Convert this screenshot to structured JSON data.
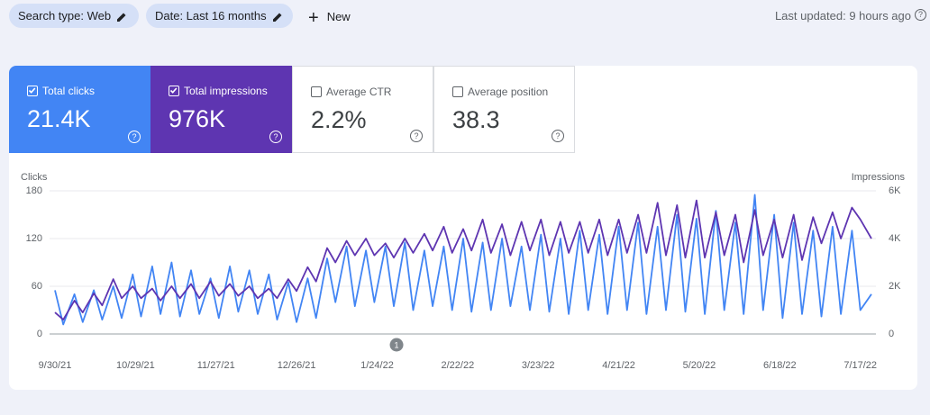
{
  "filters": [
    {
      "label": "Search type: Web"
    },
    {
      "label": "Date: Last 16 months"
    }
  ],
  "new_button": "New",
  "last_updated": "Last updated: 9 hours ago",
  "metrics": [
    {
      "label": "Total clicks",
      "value": "21.4K",
      "selected": true,
      "color": "#4285f4"
    },
    {
      "label": "Total impressions",
      "value": "976K",
      "selected": true,
      "color": "#5e35b1"
    },
    {
      "label": "Average CTR",
      "value": "2.2%",
      "selected": false,
      "color": "#00897b"
    },
    {
      "label": "Average position",
      "value": "38.3",
      "selected": false,
      "color": "#e8710a"
    }
  ],
  "chart_data": {
    "type": "line",
    "y_label": "Clicks",
    "y2_label": "Impressions",
    "x": [
      "9/30/21",
      "10/3/21",
      "10/7/21",
      "10/10/21",
      "10/14/21",
      "10/17/21",
      "10/21/21",
      "10/24/21",
      "10/28/21",
      "10/31/21",
      "11/4/21",
      "11/7/21",
      "11/11/21",
      "11/14/21",
      "11/18/21",
      "11/21/21",
      "11/25/21",
      "11/28/21",
      "12/2/21",
      "12/5/21",
      "12/9/21",
      "12/12/21",
      "12/16/21",
      "12/19/21",
      "12/23/21",
      "12/26/21",
      "12/30/21",
      "1/2/22",
      "1/6/22",
      "1/9/22",
      "1/13/22",
      "1/16/22",
      "1/20/22",
      "1/23/22",
      "1/27/22",
      "1/30/22",
      "2/3/22",
      "2/6/22",
      "2/10/22",
      "2/13/22",
      "2/17/22",
      "2/20/22",
      "2/24/22",
      "2/27/22",
      "3/3/22",
      "3/6/22",
      "3/10/22",
      "3/13/22",
      "3/17/22",
      "3/20/22",
      "3/24/22",
      "3/27/22",
      "3/31/22",
      "4/3/22",
      "4/7/22",
      "4/10/22",
      "4/14/22",
      "4/17/22",
      "4/21/22",
      "4/24/22",
      "4/28/22",
      "5/1/22",
      "5/5/22",
      "5/8/22",
      "5/12/22",
      "5/15/22",
      "5/19/22",
      "5/22/22",
      "5/26/22",
      "5/29/22",
      "6/2/22",
      "6/5/22",
      "6/9/22",
      "6/12/22",
      "6/16/22",
      "6/19/22",
      "6/23/22",
      "6/26/22",
      "6/30/22",
      "7/3/22",
      "7/7/22",
      "7/10/22",
      "7/14/22",
      "7/17/22",
      "7/21/22"
    ],
    "xlim": [
      "9/30/21",
      "7/21/22"
    ],
    "xticks": [
      "9/30/21",
      "10/29/21",
      "11/27/21",
      "12/26/21",
      "1/24/22",
      "2/22/22",
      "3/23/22",
      "4/21/22",
      "5/20/22",
      "6/18/22",
      "7/17/22"
    ],
    "ylim": [
      0,
      180
    ],
    "yticks": [
      0,
      60,
      120,
      180
    ],
    "y2lim": [
      0,
      6000
    ],
    "y2ticks": [
      0,
      {
        "value": 2000,
        "label": "2K"
      },
      {
        "value": 4000,
        "label": "4K"
      },
      {
        "value": 6000,
        "label": "6K"
      }
    ],
    "grid": true,
    "annotations": [
      {
        "label": "1",
        "x": "1/31/22"
      }
    ],
    "series": [
      {
        "name": "Clicks",
        "color": "#4285f4",
        "values": [
          55,
          12,
          50,
          15,
          55,
          18,
          60,
          20,
          75,
          22,
          85,
          25,
          90,
          22,
          80,
          25,
          70,
          20,
          85,
          28,
          80,
          25,
          75,
          18,
          65,
          15,
          70,
          20,
          95,
          40,
          110,
          35,
          105,
          40,
          110,
          35,
          115,
          30,
          105,
          35,
          110,
          30,
          120,
          28,
          115,
          30,
          120,
          35,
          110,
          30,
          125,
          28,
          120,
          25,
          130,
          30,
          125,
          25,
          135,
          30,
          140,
          25,
          135,
          30,
          150,
          28,
          145,
          25,
          155,
          30,
          140,
          25,
          175,
          30,
          150,
          20,
          140,
          25,
          130,
          22,
          135,
          25,
          130,
          30,
          50
        ]
      },
      {
        "name": "Impressions",
        "color": "#5e35b1",
        "axis": "y2",
        "values": [
          900,
          600,
          1400,
          900,
          1700,
          1200,
          2300,
          1500,
          2000,
          1500,
          1900,
          1400,
          2000,
          1500,
          2100,
          1500,
          2200,
          1600,
          2100,
          1600,
          2000,
          1500,
          1900,
          1500,
          2300,
          1800,
          2800,
          2200,
          3600,
          3000,
          3900,
          3300,
          4000,
          3300,
          3800,
          3200,
          4000,
          3400,
          4200,
          3500,
          4500,
          3400,
          4400,
          3500,
          4800,
          3400,
          4600,
          3300,
          4700,
          3500,
          4800,
          3300,
          4700,
          3400,
          4700,
          3400,
          4800,
          3300,
          4800,
          3400,
          5000,
          3400,
          5500,
          3300,
          5400,
          3200,
          5600,
          3200,
          5100,
          3300,
          5000,
          3000,
          5200,
          3300,
          4800,
          3200,
          5000,
          3100,
          4900,
          3800,
          5100,
          4000,
          5300,
          4800,
          4000
        ]
      }
    ]
  }
}
